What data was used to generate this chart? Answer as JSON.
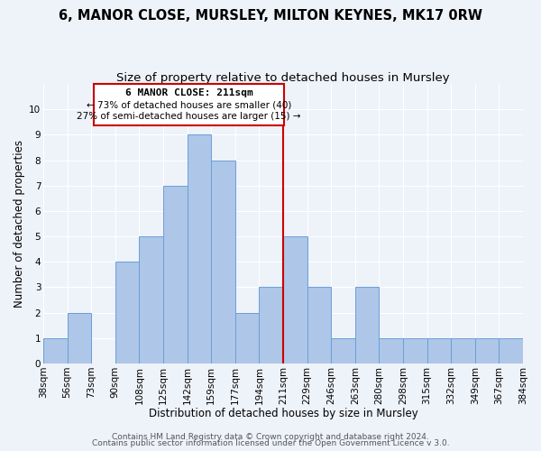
{
  "title": "6, MANOR CLOSE, MURSLEY, MILTON KEYNES, MK17 0RW",
  "subtitle": "Size of property relative to detached houses in Mursley",
  "xlabel": "Distribution of detached houses by size in Mursley",
  "ylabel": "Number of detached properties",
  "bin_labels": [
    "38sqm",
    "56sqm",
    "73sqm",
    "90sqm",
    "108sqm",
    "125sqm",
    "142sqm",
    "159sqm",
    "177sqm",
    "194sqm",
    "211sqm",
    "229sqm",
    "246sqm",
    "263sqm",
    "280sqm",
    "298sqm",
    "315sqm",
    "332sqm",
    "349sqm",
    "367sqm",
    "384sqm"
  ],
  "counts": [
    1,
    2,
    0,
    4,
    5,
    7,
    9,
    8,
    2,
    3,
    5,
    3,
    1,
    3,
    1,
    1,
    1,
    1,
    1,
    1
  ],
  "bar_color": "#aec6e8",
  "bar_edge_color": "#6a9fd8",
  "reference_line_x": 10,
  "reference_line_color": "#cc0000",
  "annotation_title": "6 MANOR CLOSE: 211sqm",
  "annotation_line1": "← 73% of detached houses are smaller (40)",
  "annotation_line2": "27% of semi-detached houses are larger (15) →",
  "annotation_box_edge": "#cc0000",
  "ylim": [
    0,
    11
  ],
  "yticks": [
    0,
    1,
    2,
    3,
    4,
    5,
    6,
    7,
    8,
    9,
    10
  ],
  "footer1": "Contains HM Land Registry data © Crown copyright and database right 2024.",
  "footer2": "Contains public sector information licensed under the Open Government Licence v 3.0.",
  "background_color": "#eef2f9",
  "grid_color": "#ffffff",
  "title_fontsize": 10.5,
  "subtitle_fontsize": 9.5,
  "axis_label_fontsize": 8.5,
  "tick_fontsize": 7.5,
  "footer_fontsize": 6.5
}
